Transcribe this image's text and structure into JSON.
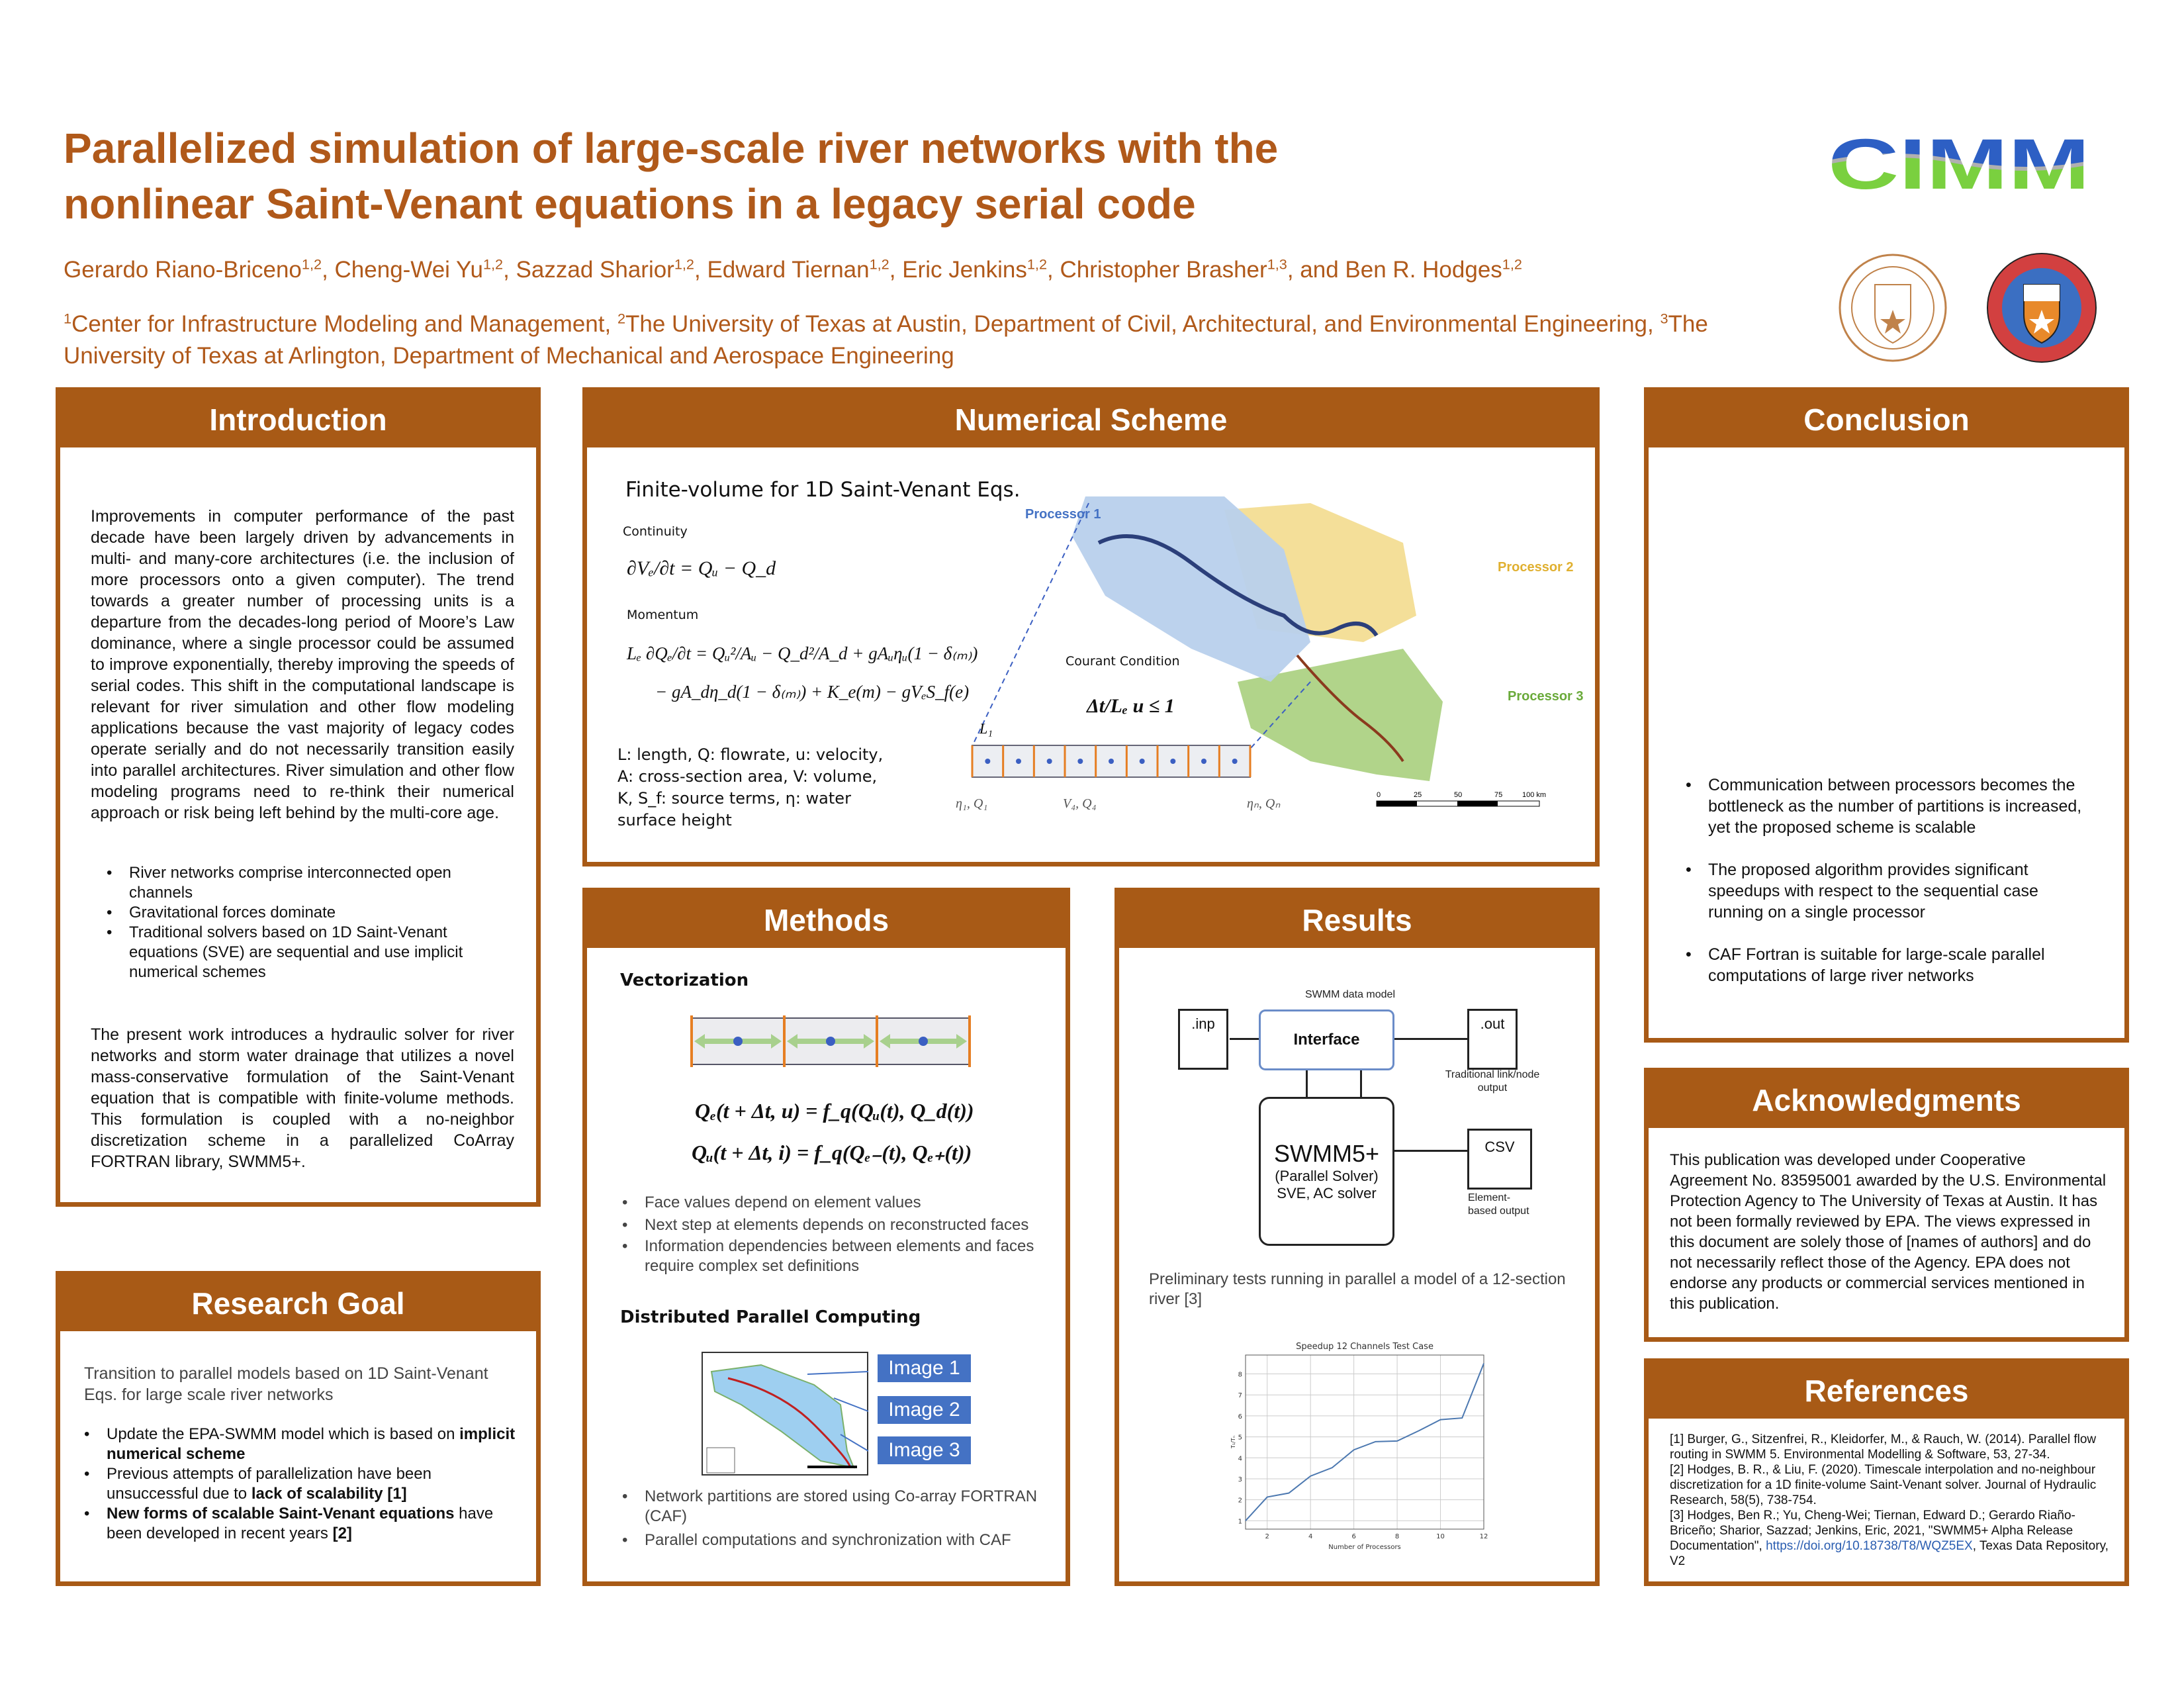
{
  "header": {
    "title_line1": "Parallelized simulation of large-scale river networks with the",
    "title_line2": "nonlinear Saint-Venant equations in a legacy serial code",
    "authors": [
      {
        "name": "Gerardo Riano-Briceno",
        "sup": "1,2",
        "sep": ", "
      },
      {
        "name": "Cheng-Wei Yu",
        "sup": "1,2",
        "sep": ", "
      },
      {
        "name": "Sazzad Sharior",
        "sup": "1,2",
        "sep": ", "
      },
      {
        "name": "Edward Tiernan",
        "sup": "1,2",
        "sep": ", "
      },
      {
        "name": "Eric Jenkins",
        "sup": "1,2",
        "sep": ", "
      },
      {
        "name": "Christopher Brasher",
        "sup": "1,3",
        "sep": ", and "
      },
      {
        "name": "Ben R. Hodges",
        "sup": "1,2",
        "sep": ""
      }
    ],
    "affiliations": [
      {
        "sup": "1",
        "text": "Center for Infrastructure Modeling and Management, "
      },
      {
        "sup": "2",
        "text": "The University of Texas at Austin, Department of Civil, Architectural, and Environmental Engineering, "
      },
      {
        "sup": "3",
        "text": "The University of Texas at Arlington, Department of Mechanical and Aerospace Engineering"
      }
    ],
    "logos": {
      "cimm": "CIMM",
      "seal_austin": "THE UNIVERSITY OF TEXAS AT AUSTIN",
      "seal_arlington": "THE UNIVERSITY OF TEXAS AT ARLINGTON"
    }
  },
  "colors": {
    "accent": "#a85a16",
    "title": "#b0591a",
    "blue": "#4472c4",
    "green": "#8fc97a",
    "orange": "#e67e22"
  },
  "introduction": {
    "title": "Introduction",
    "p1": "Improvements in computer performance of the past decade have been largely driven by advancements in multi- and many-core architectures (i.e. the inclusion of more processors onto a given computer).  The trend towards a greater number of processing units is a departure from the decades-long period of Moore’s Law dominance, where a single processor could be assumed to improve exponentially, thereby improving the speeds of serial codes.  This shift in the computational landscape is relevant for river simulation and other flow modeling applications because the vast majority of legacy codes operate serially and do not necessarily transition easily into parallel architectures.  River simulation and other flow modeling programs need to re-think their numerical approach or risk being left behind by the multi-core age.",
    "bullets": [
      "River networks comprise interconnected open channels",
      "Gravitational forces dominate",
      "Traditional solvers based on 1D Saint-Venant equations (SVE) are sequential and use implicit numerical schemes"
    ],
    "p2": "The present work introduces a hydraulic solver for river networks and storm water drainage that utilizes a novel mass-conservative formulation of the Saint-Venant equation that is compatible with finite-volume methods. This formulation is coupled with a no-neighbor discretization scheme in a parallelized CoArray FORTRAN library, SWMM5+."
  },
  "research_goal": {
    "title": "Research Goal",
    "intro": "Transition to parallel models based on 1D Saint-Venant Eqs. for large scale river networks",
    "b1_pre": "Update the EPA-SWMM model which is based on ",
    "b1_bold": "implicit numerical scheme",
    "b2_pre": "Previous attempts of parallelization have been unsuccessful due to ",
    "b2_bold": "lack of scalability [1]",
    "b3_bold": "New forms of scalable Saint-Venant equations",
    "b3_post": " have been developed in recent years ",
    "b3_ref": "[2]"
  },
  "numerical_scheme": {
    "title": "Numerical Scheme",
    "subtitle": "Finite-volume for 1D Saint-Venant Eqs.",
    "continuity_label": "Continuity",
    "continuity_eq": "∂Vₑ/∂t = Qᵤ − Q_d",
    "momentum_label": "Momentum",
    "momentum_eq1": "Lₑ ∂Qₑ/∂t = Qᵤ²/Aᵤ − Q_d²/A_d + gAᵤηᵤ(1 − δ₍ₘ₎)",
    "momentum_eq2": "− gA_dη_d(1 − δ₍ₘ₎) + K_e(m) − gVₑS_f(e)",
    "legend_lines": [
      "L: length, Q: flowrate, u: velocity,",
      "A: cross-section area, V: volume,",
      "K, S_f: source terms, η: water",
      "surface height"
    ],
    "courant_label": "Courant Condition",
    "courant_eq": "Δt/Lₑ u ≤ 1",
    "strip_length_label": "L₁",
    "strip_labels": [
      "η₁, Q₁",
      "V₄, Q₄",
      "ηₙ, Qₙ"
    ],
    "processors": [
      "Processor 1",
      "Processor 2",
      "Processor 3"
    ],
    "scale_labels": [
      "0",
      "25",
      "50",
      "75",
      "100 km"
    ]
  },
  "methods": {
    "title": "Methods",
    "vectorization": "Vectorization",
    "eq1": "Qₑ(t + Δt, u) = f_q(Qᵤ(t), Q_d(t))",
    "eq2": "Qᵤ(t + Δt, i) = f_q(Qₑ₋(t), Qₑ₊(t))",
    "bullets1": [
      "Face values depend on element values",
      "Next step at elements depends on reconstructed faces",
      "Information dependencies between elements and faces require complex set definitions"
    ],
    "distributed": "Distributed Parallel Computing",
    "images": [
      "Image 1",
      "Image 2",
      "Image 3"
    ],
    "bullets2": [
      "Network partitions are stored using Co-array FORTRAN (CAF)",
      "Parallel computations and synchronization with CAF"
    ]
  },
  "results": {
    "title": "Results",
    "diagram": {
      "data_model": "SWMM data model",
      "inp": ".inp",
      "interface": "Interface",
      "out": ".out",
      "out_caption": "Traditional link/node output",
      "solver_title": "SWMM5+",
      "solver_sub1": "(Parallel Solver)",
      "solver_sub2": "SVE, AC solver",
      "csv": "CSV",
      "csv_caption": "Element-based output"
    },
    "caption": "Preliminary tests running in parallel a model of a 12-section river [3]"
  },
  "chart_data": {
    "type": "line",
    "title": "Speedup 12 Channels Test Case",
    "xlabel": "Number of Processors",
    "ylabel": "T₁/Tₙ",
    "x": [
      1,
      2,
      3,
      4,
      5,
      6,
      7,
      8,
      9,
      10,
      11,
      12
    ],
    "values": [
      1.0,
      2.13,
      2.32,
      3.13,
      3.53,
      4.38,
      4.77,
      4.8,
      5.29,
      5.82,
      5.9,
      8.5
    ],
    "xlim": [
      1,
      12
    ],
    "ylim": [
      0.6,
      8.9
    ],
    "xticks": [
      2,
      4,
      6,
      8,
      10,
      12
    ],
    "yticks": [
      1,
      2,
      3,
      4,
      5,
      6,
      7,
      8
    ],
    "grid": true,
    "color": "#4c78b0"
  },
  "conclusion": {
    "title": "Conclusion",
    "bullets": [
      "Communication between processors becomes the bottleneck as the number of partitions is increased, yet the proposed scheme is scalable",
      "The proposed algorithm provides significant speedups with respect to the sequential case running on a single processor",
      "CAF Fortran is suitable for large-scale parallel computations of large river networks"
    ]
  },
  "acknowledgments": {
    "title": "Acknowledgments",
    "text": "This publication was developed under Cooperative Agreement No. 83595001 awarded by the U.S. Environmental Protection Agency to The University of Texas at Austin. It has not been formally reviewed by EPA. The views expressed in this document are solely those of [names of authors] and do not necessarily reflect those of the Agency. EPA does not endorse any products or commercial services mentioned in this publication."
  },
  "references": {
    "title": "References",
    "r1": "[1] Burger, G., Sitzenfrei, R., Kleidorfer, M., & Rauch, W. (2014). Parallel flow routing in SWMM 5. Environmental Modelling & Software, 53, 27-34.",
    "r2": "[2] Hodges, B. R., & Liu, F. (2020). Timescale interpolation and no-neighbour discretization for a 1D finite-volume Saint-Venant solver. Journal of Hydraulic Research, 58(5), 738-754.",
    "r3_pre": "[3] Hodges, Ben R.; Yu, Cheng-Wei; Tiernan, Edward D.; Gerardo Riaño-Briceño; Sharior, Sazzad; Jenkins, Eric, 2021, \"SWMM5+ Alpha Release Documentation\", ",
    "r3_link": "https://doi.org/10.18738/T8/WQZ5EX",
    "r3_post": ", Texas Data Repository, V2"
  }
}
